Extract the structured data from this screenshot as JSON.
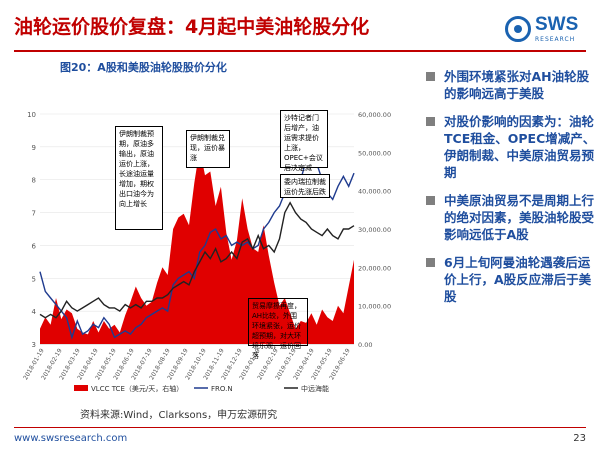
{
  "header": {
    "title": "油轮运价股价复盘：4月起中美油轮股分化",
    "logo_text": "SWS",
    "logo_sub": "RESEARCH"
  },
  "figure_title": "图20：A股和美股油轮股股价分化",
  "source": "资料来源:Wind，Clarksons，申万宏源研究",
  "bullets": [
    "外围环境紧张对AH油轮股的影响远高于美股",
    "对股价影响的因素为：油轮TCE租金、OPEC增减产、伊朗制裁、中美原油贸易预期",
    "中美原油贸易不是周期上行的绝对因素，美股油轮股受影响远低于A股",
    "6月上旬阿曼油轮遇袭后运价上行，A股反应滞后于美股"
  ],
  "footer": {
    "url": "www.swsresearch.com",
    "page": "23"
  },
  "annotations": [
    "伊朗制裁预期，原油多输出，原油运价上涨，长途油运量增加，期权出口油今为向上增长",
    "伊朗制裁兑现，运价暴涨",
    "沙特记者门后增产，油运需求提价上涨，OPEC+会议后决定减产，运价暴跌回落",
    "委内瑞拉制裁运价先涨后跌",
    "贸易摩擦再度，AH比较，外围环境紧张，运价超预期，对大环境乐观，运价回落"
  ],
  "chart_data": {
    "type": "line",
    "x_tick_labels": [
      "2018-01-19",
      "2018-02-19",
      "2018-03-19",
      "2018-04-19",
      "2018-05-19",
      "2018-06-19",
      "2018-07-19",
      "2018-08-19",
      "2018-09-19",
      "2018-10-19",
      "2018-11-19",
      "2018-12-19",
      "2019-01-19",
      "2019-02-19",
      "2019-03-19",
      "2019-04-19",
      "2019-05-19",
      "2019-06-19"
    ],
    "ylim_left": [
      3,
      10
    ],
    "yticks_left": [
      3,
      4,
      5,
      6,
      7,
      8,
      9,
      10
    ],
    "ylim_right": [
      0,
      60000
    ],
    "yticks_right": [
      0,
      10000,
      20000,
      30000,
      40000,
      50000,
      60000
    ],
    "yticks_right_labels": [
      "0.00",
      "10,000.00",
      "20,000.00",
      "30,000.00",
      "40,000.00",
      "50,000.00",
      "60,000.00"
    ],
    "series": [
      {
        "name": "VLCC TCE（美元/天，右轴）",
        "type": "area",
        "axis": "right",
        "color": "#e00000",
        "values": [
          4000,
          7000,
          5000,
          12000,
          6500,
          9000,
          8000,
          4000,
          3000,
          2500,
          6000,
          3000,
          6000,
          4000,
          5000,
          3000,
          7500,
          11000,
          15000,
          12000,
          10000,
          11000,
          16000,
          20000,
          18000,
          30000,
          33000,
          34000,
          31000,
          42000,
          51000,
          44000,
          45000,
          36000,
          41000,
          29000,
          22000,
          27000,
          38000,
          30000,
          25000,
          24000,
          31000,
          23000,
          16000,
          10000,
          12000,
          8000,
          4000,
          6000,
          5500,
          8000,
          5000,
          9000,
          7000,
          6000,
          10000,
          8000,
          15000,
          22000
        ]
      },
      {
        "name": "FRO.N",
        "type": "line",
        "axis": "left",
        "color": "#1f3b8f",
        "values": [
          5.2,
          4.6,
          4.4,
          4.2,
          4.0,
          3.8,
          3.2,
          3.7,
          3.3,
          3.4,
          3.6,
          3.5,
          3.8,
          3.6,
          3.2,
          3.3,
          3.4,
          3.3,
          3.5,
          3.6,
          3.8,
          3.9,
          4.0,
          4.1,
          4.0,
          4.8,
          5.0,
          5.1,
          5.2,
          5.0,
          5.8,
          6.0,
          6.4,
          6.5,
          6.2,
          6.3,
          6.0,
          6.1,
          6.0,
          6.1,
          5.9,
          6.0,
          6.5,
          6.7,
          7.0,
          7.2,
          7.6,
          7.8,
          7.6,
          8.0,
          8.6,
          8.4,
          8.5,
          8.0,
          7.6,
          7.4,
          7.8,
          8.1,
          7.8,
          8.2
        ]
      },
      {
        "name": "中远海能",
        "type": "line",
        "axis": "left",
        "color": "#222222",
        "values": [
          3.9,
          3.8,
          3.9,
          3.8,
          4.0,
          4.3,
          4.1,
          4.0,
          4.1,
          4.2,
          4.3,
          4.4,
          4.2,
          4.1,
          4.1,
          4.0,
          4.2,
          4.1,
          4.2,
          4.1,
          4.3,
          4.3,
          4.4,
          4.4,
          4.5,
          4.7,
          4.8,
          4.9,
          4.8,
          5.2,
          5.5,
          5.8,
          5.6,
          5.9,
          5.5,
          5.6,
          5.8,
          5.6,
          6.1,
          6.2,
          5.9,
          6.3,
          5.9,
          6.0,
          5.8,
          6.2,
          7.0,
          7.3,
          7.0,
          6.8,
          6.7,
          6.5,
          6.4,
          6.3,
          6.5,
          6.3,
          6.2,
          6.5,
          6.5,
          6.6
        ]
      }
    ]
  }
}
